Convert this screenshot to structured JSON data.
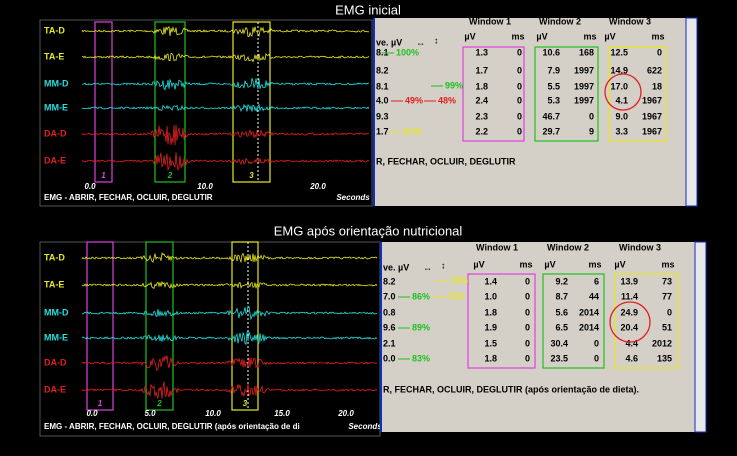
{
  "panels": [
    {
      "title": "EMG inicial",
      "channels": [
        "TA-D",
        "TA-E",
        "MM-D",
        "MM-E",
        "DA-D",
        "DA-E"
      ],
      "time_labels": [
        "0.0",
        "10.0",
        "20.0"
      ],
      "seconds": "Seconds",
      "window_marks": [
        "1",
        "2",
        "3"
      ],
      "status": "EMG - ABRIR, FECHAR, OCLUIR, DEGLUTIR",
      "table": {
        "level_header": "ve. µV",
        "windows": [
          "Window 1",
          "Window 2",
          "Window 3"
        ],
        "subheaders": [
          "µV",
          "ms"
        ],
        "levels": [
          "8.1",
          "8.2",
          "8.1",
          "4.0",
          "9.3",
          "1.7"
        ],
        "rows": [
          [
            [
              "1.3",
              "0"
            ],
            [
              "10.6",
              "168"
            ],
            [
              "12.5",
              "0"
            ]
          ],
          [
            [
              "1.7",
              "0"
            ],
            [
              "7.9",
              "1997"
            ],
            [
              "14.9",
              "622"
            ]
          ],
          [
            [
              "1.8",
              "0"
            ],
            [
              "5.5",
              "1997"
            ],
            [
              "17.0",
              "18"
            ]
          ],
          [
            [
              "2.4",
              "0"
            ],
            [
              "5.3",
              "1997"
            ],
            [
              "4.1",
              "1967"
            ]
          ],
          [
            [
              "2.3",
              "0"
            ],
            [
              "46.7",
              "0"
            ],
            [
              "9.0",
              "1967"
            ]
          ],
          [
            [
              "2.2",
              "0"
            ],
            [
              "29.7",
              "9"
            ],
            [
              "3.3",
              "1967"
            ]
          ]
        ],
        "percents": [
          "100%",
          "99%",
          "49%",
          "48%",
          "61%"
        ],
        "caption": "R, FECHAR, OCLUIR, DEGLUTIR"
      }
    },
    {
      "title": "EMG após orientação nutricional",
      "channels": [
        "TA-D",
        "TA-E",
        "MM-D",
        "MM-E",
        "DA-D",
        "DA-E"
      ],
      "time_labels": [
        "0.0",
        "5.0",
        "10.0",
        "15.0",
        "20.0"
      ],
      "seconds": "Seconds",
      "window_marks": [
        "1",
        "2",
        "3"
      ],
      "status": "EMG - ABRIR, FECHAR, OCLUIR, DEGLUTIR (após orientação de di",
      "table": {
        "level_header": "ve. µV",
        "windows": [
          "Window 1",
          "Window 2",
          "Window 3"
        ],
        "subheaders": [
          "µV",
          "ms"
        ],
        "levels": [
          "8.2",
          "7.0",
          "0.8",
          "9.6",
          "2.1",
          "0.0"
        ],
        "rows": [
          [
            [
              "1.4",
              "0"
            ],
            [
              "9.2",
              "6"
            ],
            [
              "13.9",
              "73"
            ]
          ],
          [
            [
              "1.0",
              "0"
            ],
            [
              "8.7",
              "44"
            ],
            [
              "11.4",
              "77"
            ]
          ],
          [
            [
              "1.8",
              "0"
            ],
            [
              "5.6",
              "2014"
            ],
            [
              "24.9",
              "0"
            ]
          ],
          [
            [
              "1.9",
              "0"
            ],
            [
              "6.5",
              "2014"
            ],
            [
              "20.4",
              "51"
            ]
          ],
          [
            [
              "1.5",
              "0"
            ],
            [
              "30.4",
              "0"
            ],
            [
              "4.4",
              "2012"
            ]
          ],
          [
            [
              "1.8",
              "0"
            ],
            [
              "23.5",
              "0"
            ],
            [
              "4.6",
              "135"
            ]
          ]
        ],
        "percents": [
          "76%",
          "86%",
          "73%",
          "89%",
          "83%"
        ],
        "caption": "R, FECHAR, OCLUIR, DEGLUTIR (após orientação de dieta)."
      }
    }
  ]
}
